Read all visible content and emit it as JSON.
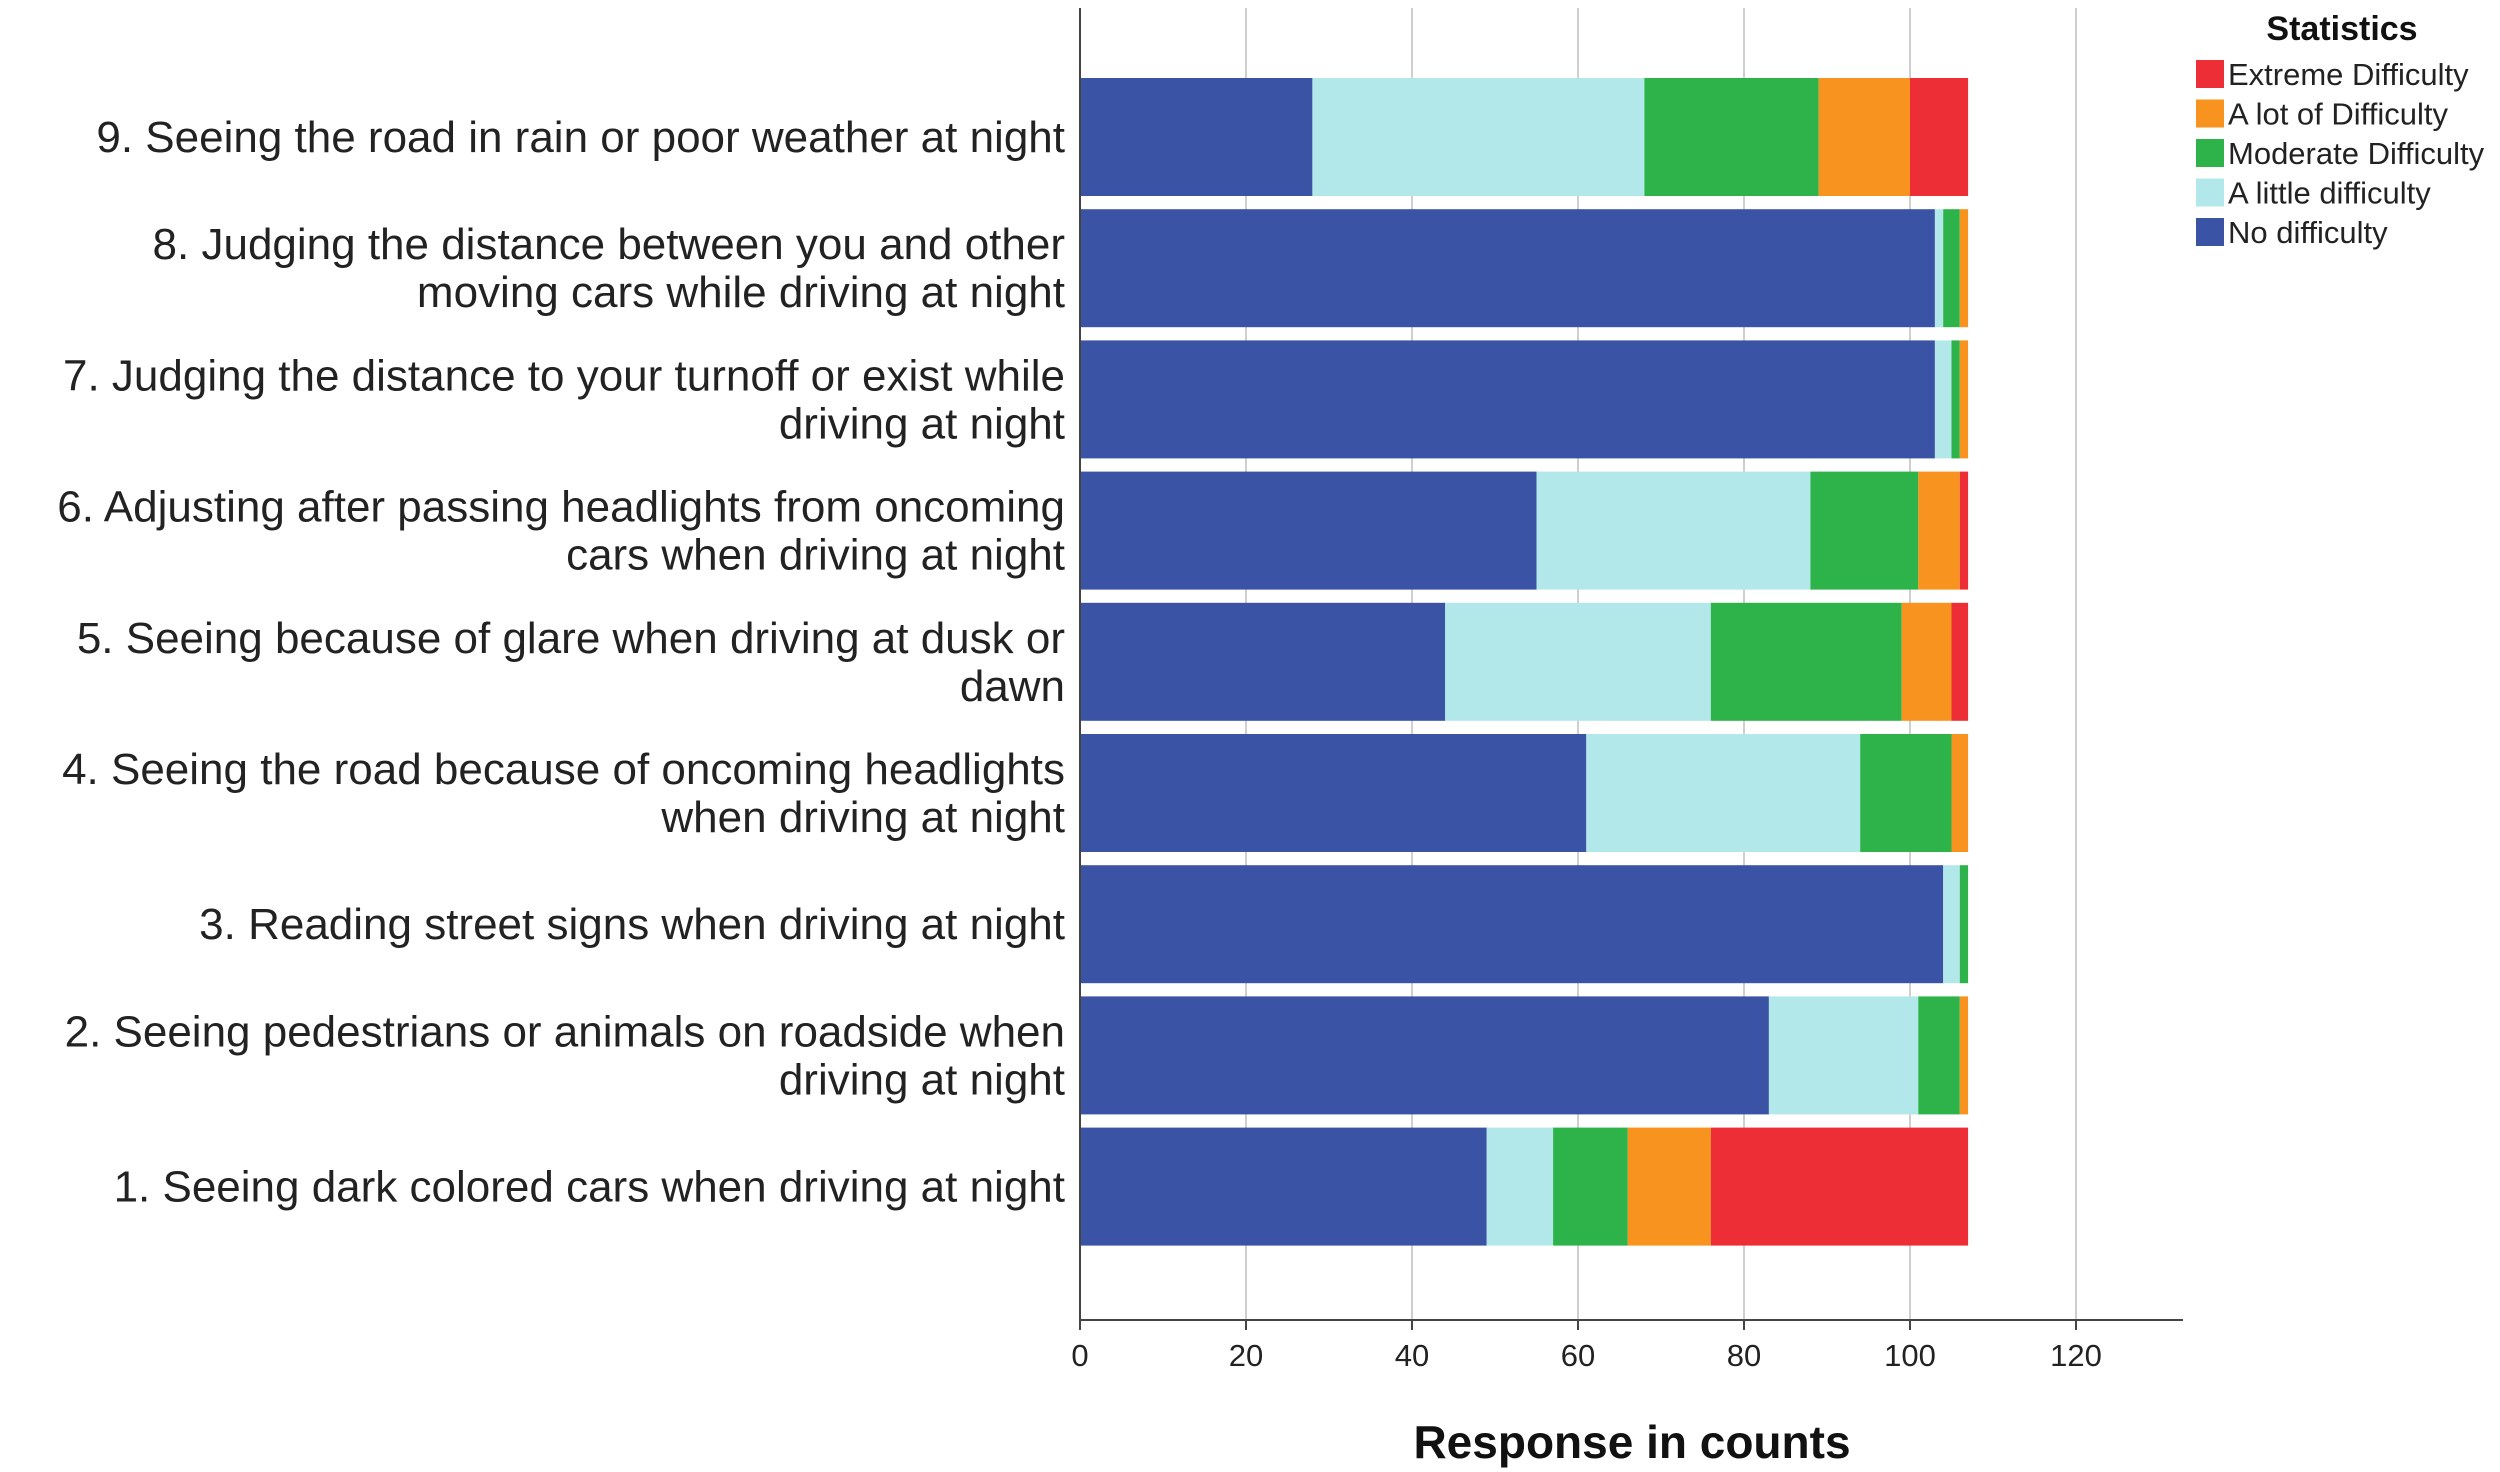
{
  "chart_data": {
    "type": "bar",
    "orientation": "horizontal",
    "stacked": true,
    "title": "",
    "xlabel": "Response in counts",
    "ylabel": "",
    "xlim": [
      0,
      130
    ],
    "xticks": [
      0,
      20,
      40,
      60,
      80,
      100,
      120
    ],
    "grid": "vertical",
    "categories": [
      [
        "9. Seeing the road in rain or poor weather at night"
      ],
      [
        "8. Judging the distance between you and other",
        "moving cars while driving at night"
      ],
      [
        "7. Judging the distance to your turnoff or exist while",
        "driving at night"
      ],
      [
        "6. Adjusting after passing headlights from oncoming",
        "cars when driving at night"
      ],
      [
        "5. Seeing because of glare when driving at dusk or",
        "dawn"
      ],
      [
        "4. Seeing the road because of oncoming headlights",
        "when driving at night"
      ],
      [
        "3. Reading street signs when driving at night"
      ],
      [
        "2. Seeing pedestrians or animals on roadside when",
        "driving at night"
      ],
      [
        "1. Seeing dark colored cars when driving at night"
      ]
    ],
    "series": [
      {
        "name": "No difficulty",
        "color": "#3a53a4",
        "values": [
          28,
          103,
          103,
          55,
          44,
          61,
          104,
          83,
          49
        ]
      },
      {
        "name": "A little difficulty",
        "color": "#b3e8ea",
        "values": [
          40,
          1,
          2,
          33,
          32,
          33,
          2,
          18,
          8
        ]
      },
      {
        "name": "Moderate Difficulty",
        "color": "#2db34a",
        "values": [
          21,
          2,
          1,
          13,
          23,
          11,
          1,
          5,
          9
        ]
      },
      {
        "name": "A lot of Difficulty",
        "color": "#f7931e",
        "values": [
          11,
          1,
          1,
          5,
          6,
          2,
          0,
          1,
          10
        ]
      },
      {
        "name": "Extreme Difficulty",
        "color": "#ee2e36",
        "values": [
          7,
          0,
          0,
          1,
          2,
          0,
          0,
          0,
          31
        ]
      }
    ],
    "legend": {
      "title": "Statistics",
      "position": "top-right",
      "order": [
        "Extreme Difficulty",
        "A lot of Difficulty",
        "Moderate Difficulty",
        "A little difficulty",
        "No difficulty"
      ]
    }
  }
}
